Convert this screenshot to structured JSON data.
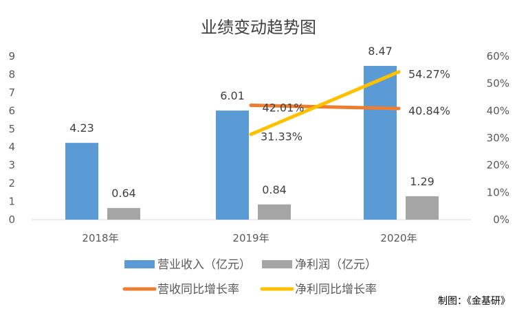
{
  "chart_data": {
    "type": "bar",
    "title": "业绩变动趋势图",
    "categories": [
      "2018年",
      "2019年",
      "2020年"
    ],
    "ylim": [
      0,
      9
    ],
    "y_ticks": [
      0,
      1,
      2,
      3,
      4,
      5,
      6,
      7,
      8,
      9
    ],
    "y2lim": [
      0,
      60
    ],
    "y2_ticks": [
      "0%",
      "10%",
      "20%",
      "30%",
      "40%",
      "50%",
      "60%"
    ],
    "grid": false,
    "legend_position": "bottom",
    "series": [
      {
        "name": "营业收入（亿元）",
        "type": "bar",
        "color": "#5b9bd5",
        "values": [
          4.23,
          6.01,
          8.47
        ],
        "labels": [
          "4.23",
          "6.01",
          "8.47"
        ]
      },
      {
        "name": "净利润（亿元）",
        "type": "bar",
        "color": "#a5a5a5",
        "values": [
          0.64,
          0.84,
          1.29
        ],
        "labels": [
          "0.64",
          "0.84",
          "1.29"
        ]
      },
      {
        "name": "营收同比增长率",
        "type": "line",
        "axis": "right",
        "color": "#ed7d31",
        "values": [
          null,
          42.01,
          40.84
        ],
        "labels": [
          "",
          "42.01%",
          "40.84%"
        ]
      },
      {
        "name": "净利同比增长率",
        "type": "line",
        "axis": "right",
        "color": "#ffc000",
        "values": [
          null,
          31.33,
          54.27
        ],
        "labels": [
          "",
          "31.33%",
          "54.27%"
        ]
      }
    ],
    "source_note": "制图：《金基研》"
  }
}
